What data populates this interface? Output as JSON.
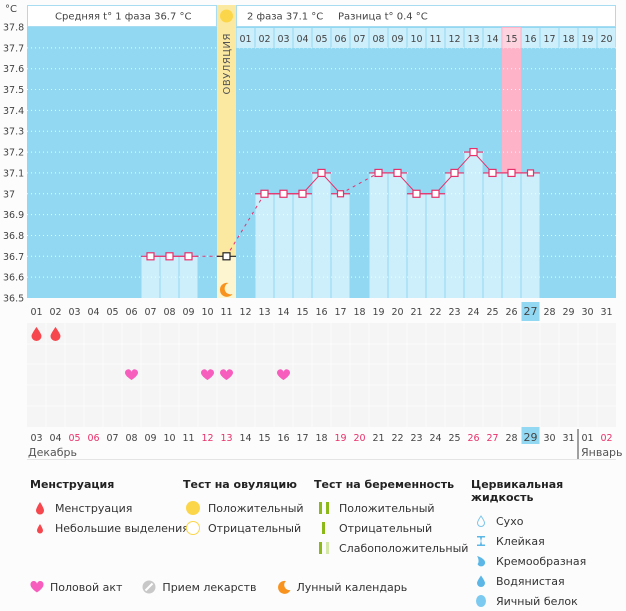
{
  "header": {
    "unit": "°C",
    "phase1_label": "Средняя t° 1 фаза",
    "phase1_value": "36.7 °C",
    "phase2_label": "2 фаза",
    "phase2_value": "37.1 °C",
    "diff_label": "Разница t°",
    "diff_value": "0.4 °C",
    "ovulation_label": "ОВУЛЯЦИЯ"
  },
  "colors": {
    "background_phase": "#92d8f2",
    "bar_fill": "#cdeefb",
    "ovulation": "#fbe9a1",
    "ovulation_low": "#fdf4d0",
    "highlight_day": "#ffb3c9",
    "line": "#e8306a",
    "today": "#92d8f2",
    "red_date": "#e8306a"
  },
  "chart_data": {
    "type": "line",
    "title": "",
    "ylabel": "°C",
    "ylim": [
      36.5,
      37.8
    ],
    "yticks": [
      "37.8",
      "37.7",
      "37.6",
      "37.5",
      "37.4",
      "37.3",
      "37.2",
      "37.1",
      "37",
      "36.9",
      "36.8",
      "36.7",
      "36.6",
      "36.5"
    ],
    "cycle_days": [
      "01",
      "02",
      "03",
      "04",
      "05",
      "06",
      "07",
      "08",
      "09",
      "10",
      "11",
      "12",
      "13",
      "14",
      "15",
      "16",
      "17",
      "18",
      "19",
      "20",
      "21",
      "22",
      "23",
      "24",
      "25",
      "26",
      "27",
      "28",
      "29",
      "30",
      "31"
    ],
    "phase2_days": [
      "01",
      "02",
      "03",
      "04",
      "05",
      "06",
      "07",
      "08",
      "09",
      "10",
      "11",
      "12",
      "13",
      "14",
      "15",
      "16",
      "17",
      "18",
      "19",
      "20"
    ],
    "ovulation_day": 11,
    "highlight_phase2_day": 15,
    "current_cycle_day": 27,
    "series": [
      {
        "name": "Базальная температура",
        "points": [
          {
            "day": 7,
            "value": 36.7
          },
          {
            "day": 8,
            "value": 36.7
          },
          {
            "day": 9,
            "value": 36.7
          },
          {
            "day": 11,
            "value": 36.7
          },
          {
            "day": 13,
            "value": 37.0
          },
          {
            "day": 14,
            "value": 37.0
          },
          {
            "day": 15,
            "value": 37.0
          },
          {
            "day": 16,
            "value": 37.1
          },
          {
            "day": 17,
            "value": 37.0
          },
          {
            "day": 19,
            "value": 37.1
          },
          {
            "day": 20,
            "value": 37.1
          },
          {
            "day": 21,
            "value": 37.0
          },
          {
            "day": 22,
            "value": 37.0
          },
          {
            "day": 23,
            "value": 37.1
          },
          {
            "day": 24,
            "value": 37.2
          },
          {
            "day": 25,
            "value": 37.1
          },
          {
            "day": 26,
            "value": 37.1
          },
          {
            "day": 27,
            "value": 37.1
          }
        ]
      }
    ],
    "events": {
      "menstruation_days": [
        1,
        2
      ],
      "intercourse_days": [
        6,
        10,
        11,
        14
      ]
    },
    "calendar_dates": [
      {
        "d": "03",
        "red": false
      },
      {
        "d": "04",
        "red": false
      },
      {
        "d": "05",
        "red": true
      },
      {
        "d": "06",
        "red": true
      },
      {
        "d": "07",
        "red": false
      },
      {
        "d": "08",
        "red": false
      },
      {
        "d": "09",
        "red": false
      },
      {
        "d": "10",
        "red": false
      },
      {
        "d": "11",
        "red": false
      },
      {
        "d": "12",
        "red": true
      },
      {
        "d": "13",
        "red": true
      },
      {
        "d": "14",
        "red": false
      },
      {
        "d": "15",
        "red": false
      },
      {
        "d": "16",
        "red": false
      },
      {
        "d": "17",
        "red": false
      },
      {
        "d": "18",
        "red": false
      },
      {
        "d": "19",
        "red": true
      },
      {
        "d": "20",
        "red": true
      },
      {
        "d": "21",
        "red": false
      },
      {
        "d": "22",
        "red": false
      },
      {
        "d": "23",
        "red": false
      },
      {
        "d": "24",
        "red": false
      },
      {
        "d": "25",
        "red": false
      },
      {
        "d": "26",
        "red": true
      },
      {
        "d": "27",
        "red": true
      },
      {
        "d": "28",
        "red": false
      },
      {
        "d": "29",
        "red": false,
        "today": true
      },
      {
        "d": "30",
        "red": false
      },
      {
        "d": "31",
        "red": false
      },
      {
        "d": "01",
        "red": false
      },
      {
        "d": "02",
        "red": true
      }
    ],
    "months": [
      "Декабрь",
      "Январь"
    ]
  },
  "legend": {
    "menstruation": {
      "title": "Менструация",
      "items": [
        "Менструация",
        "Небольшие выделения"
      ]
    },
    "ovulation_test": {
      "title": "Тест на овуляцию",
      "items": [
        "Положительный",
        "Отрицательный"
      ]
    },
    "pregnancy_test": {
      "title": "Тест на беременность",
      "items": [
        "Положительный",
        "Отрицательный",
        "Слабоположительный"
      ]
    },
    "cervical": {
      "title": "Цервикальная жидкость",
      "items": [
        "Сухо",
        "Клейкая",
        "Кремообразная",
        "Водянистая",
        "Яичный белок"
      ]
    },
    "bottom": [
      "Половой акт",
      "Прием лекарств",
      "Лунный календарь"
    ]
  }
}
